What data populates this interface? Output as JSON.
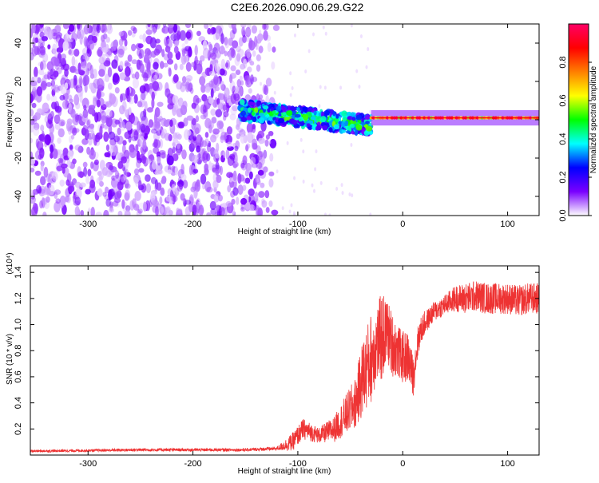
{
  "title": "C2E6.2026.090.06.29.G22",
  "chart_data": [
    {
      "type": "heatmap",
      "title": "C2E6.2026.090.06.29.G22",
      "xlabel": "Height of straight line (km)",
      "ylabel": "Frequency (Hz)",
      "xlim": [
        -355,
        130
      ],
      "ylim": [
        -50,
        50
      ],
      "x_ticks": [
        -300,
        -200,
        -100,
        0,
        100
      ],
      "y_ticks": [
        -40,
        -20,
        0,
        20,
        40
      ],
      "colorbar": {
        "label": "Normalized spectral amplitude",
        "range": [
          0,
          1
        ],
        "ticks": [
          "0.0",
          "0.2",
          "0.4",
          "0.6",
          "0.8"
        ],
        "colors": [
          "#ffffff",
          "#7a00ff",
          "#0000ff",
          "#00ffff",
          "#00ff00",
          "#ffff00",
          "#ff7f00",
          "#ff0000",
          "#ff0066"
        ]
      },
      "regions": [
        {
          "x": [
            -355,
            -140
          ],
          "description_level": "noise",
          "amplitude": 0.05
        },
        {
          "x": [
            -155,
            -30
          ],
          "center_freq_start": 5,
          "center_freq_end": -3,
          "amplitude": 0.3
        },
        {
          "x": [
            -30,
            130
          ],
          "center_freq": 1,
          "amplitude": 0.9
        }
      ]
    },
    {
      "type": "line",
      "xlabel": "Height of straight line (km)",
      "ylabel": "SNR (10 * v/v)",
      "y_scale_label": "(x10⁴)",
      "xlim": [
        -355,
        130
      ],
      "ylim": [
        0,
        1.45
      ],
      "x_ticks": [
        -300,
        -200,
        -100,
        0,
        100
      ],
      "y_ticks": [
        "0.2",
        "0.4",
        "0.6",
        "0.8",
        "1.0",
        "1.2",
        "1.4"
      ],
      "series": [
        {
          "color": "#ee3333",
          "x": [
            -355,
            -300,
            -250,
            -200,
            -150,
            -120,
            -105,
            -95,
            -80,
            -65,
            -55,
            -45,
            -38,
            -30,
            -25,
            -20,
            -15,
            -10,
            -5,
            0,
            5,
            10,
            15,
            20,
            25,
            30,
            40,
            50,
            60,
            70,
            80,
            90,
            100,
            110,
            120,
            130
          ],
          "y": [
            0.03,
            0.035,
            0.04,
            0.04,
            0.04,
            0.05,
            0.1,
            0.2,
            0.15,
            0.2,
            0.3,
            0.4,
            0.6,
            0.75,
            0.85,
            0.9,
            0.95,
            0.85,
            0.8,
            0.75,
            0.75,
            0.6,
            0.9,
            1.0,
            1.05,
            1.1,
            1.15,
            1.2,
            1.2,
            1.22,
            1.2,
            1.2,
            1.2,
            1.18,
            1.2,
            1.2
          ],
          "noise": [
            0.01,
            0.01,
            0.012,
            0.012,
            0.012,
            0.015,
            0.07,
            0.08,
            0.06,
            0.1,
            0.15,
            0.2,
            0.3,
            0.35,
            0.3,
            0.35,
            0.25,
            0.25,
            0.2,
            0.2,
            0.2,
            0.15,
            0.12,
            0.1,
            0.08,
            0.08,
            0.08,
            0.1,
            0.12,
            0.12,
            0.12,
            0.12,
            0.12,
            0.12,
            0.12,
            0.12
          ]
        }
      ]
    }
  ]
}
